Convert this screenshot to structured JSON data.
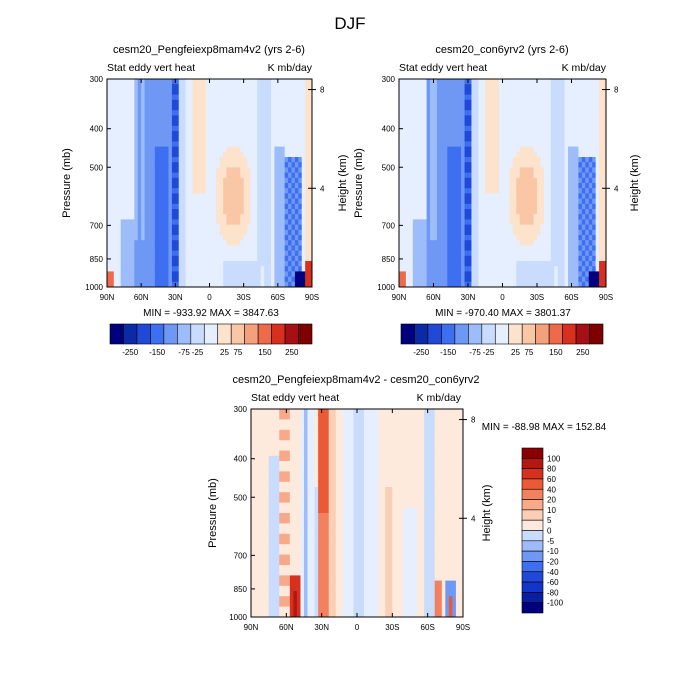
{
  "figure": {
    "title": "DJF"
  },
  "colors": {
    "main_scale": [
      "#00007f",
      "#0a2aa6",
      "#1f49d6",
      "#3d6ff0",
      "#6f98f5",
      "#9dbcfa",
      "#c9dcfd",
      "#e5efff",
      "#fde2cc",
      "#f9c6a6",
      "#f5a07c",
      "#ee6b4a",
      "#d7301f",
      "#a50f15",
      "#7f0000"
    ],
    "diff_scale": [
      "#00007f",
      "#0a1fa0",
      "#1335c9",
      "#1f49d6",
      "#3d6ff0",
      "#6f98f5",
      "#9dbcfa",
      "#c9dcfd",
      "#e5efff",
      "#fdeadc",
      "#fbcfb5",
      "#f7a98a",
      "#f2825f",
      "#ea5a37",
      "#d7301f",
      "#b21811",
      "#8a0000"
    ]
  },
  "chart_data": [
    {
      "type": "heatmap",
      "title": "cesm20_Pengfeiexp8mam4v2 (yrs 2-6)",
      "left_label": "Stat eddy vert heat",
      "right_label": "K mb/day",
      "xlabel": "",
      "ylabel": "Pressure (mb)",
      "ylabel_right": "Height (km)",
      "x_ticks": [
        "90N",
        "60N",
        "30N",
        "0",
        "30S",
        "60S",
        "90S"
      ],
      "y_ticks": [
        "300",
        "400",
        "500",
        "700",
        "850",
        "1000"
      ],
      "y_ticks_right": [
        "8",
        "4"
      ],
      "xlim": [
        90,
        -90
      ],
      "ylim": [
        1000,
        300
      ],
      "y_scale": "log",
      "stats": "MIN = -933.92   MAX = 3847.63",
      "colorbar_labels": [
        "-250",
        "-150",
        "-75",
        "-25",
        "25",
        "75",
        "150",
        "250"
      ],
      "min": -933.92,
      "max": 3847.63
    },
    {
      "type": "heatmap",
      "title": "cesm20_con6yrv2 (yrs 2-6)",
      "left_label": "Stat eddy vert heat",
      "right_label": "K mb/day",
      "xlabel": "",
      "ylabel": "Pressure (mb)",
      "ylabel_right": "Height (km)",
      "x_ticks": [
        "90N",
        "60N",
        "30N",
        "0",
        "30S",
        "60S",
        "90S"
      ],
      "y_ticks": [
        "300",
        "400",
        "500",
        "700",
        "850",
        "1000"
      ],
      "y_ticks_right": [
        "8",
        "4"
      ],
      "xlim": [
        90,
        -90
      ],
      "ylim": [
        1000,
        300
      ],
      "y_scale": "log",
      "stats": "MIN = -970.40   MAX = 3801.37",
      "colorbar_labels": [
        "-250",
        "-150",
        "-75",
        "-25",
        "25",
        "75",
        "150",
        "250"
      ],
      "min": -970.4,
      "max": 3801.37
    },
    {
      "type": "heatmap",
      "title": "cesm20_Pengfeiexp8mam4v2 - cesm20_con6yrv2",
      "left_label": "Stat eddy vert heat",
      "right_label": "K mb/day",
      "xlabel": "",
      "ylabel": "Pressure (mb)",
      "ylabel_right": "Height (km)",
      "x_ticks": [
        "90N",
        "60N",
        "30N",
        "0",
        "30S",
        "60S",
        "90S"
      ],
      "y_ticks": [
        "300",
        "400",
        "500",
        "700",
        "850",
        "1000"
      ],
      "y_ticks_right": [
        "8",
        "4"
      ],
      "xlim": [
        90,
        -90
      ],
      "ylim": [
        1000,
        300
      ],
      "y_scale": "log",
      "stats": "MIN = -88.98   MAX = 152.84",
      "colorbar_labels": [
        "100",
        "80",
        "60",
        "40",
        "20",
        "10",
        "5",
        "0",
        "-5",
        "-10",
        "-20",
        "-40",
        "-60",
        "-80",
        "-100"
      ],
      "min": -88.98,
      "max": 152.84
    }
  ]
}
